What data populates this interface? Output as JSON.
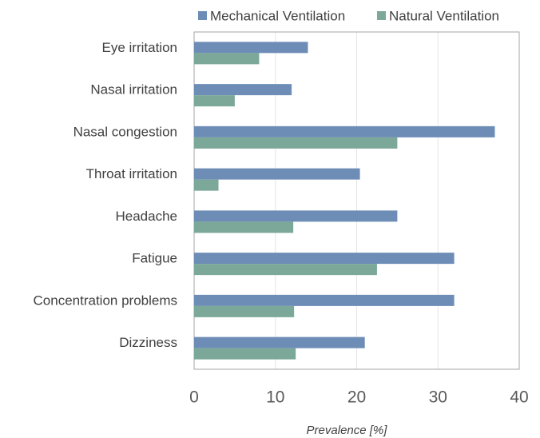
{
  "chart_data": {
    "type": "barh",
    "categories": [
      "Eye irritation",
      "Nasal irritation",
      "Nasal congestion",
      "Throat irritation",
      "Headache",
      "Fatigue",
      "Concentration problems",
      "Dizziness"
    ],
    "series": [
      {
        "name": "Mechanical Ventilation",
        "color": "#6d8db6",
        "values": [
          14,
          12,
          37,
          20.4,
          25,
          32,
          32,
          21
        ]
      },
      {
        "name": "Natural Ventilation",
        "color": "#7ba898",
        "values": [
          8,
          5,
          25,
          3,
          12.2,
          22.5,
          12.3,
          12.5
        ]
      }
    ],
    "xlabel": "Prevalence [%]",
    "xlim": [
      0,
      40
    ],
    "xticks": [
      0,
      10,
      20,
      30,
      40
    ],
    "grid": true,
    "legend": "top"
  }
}
